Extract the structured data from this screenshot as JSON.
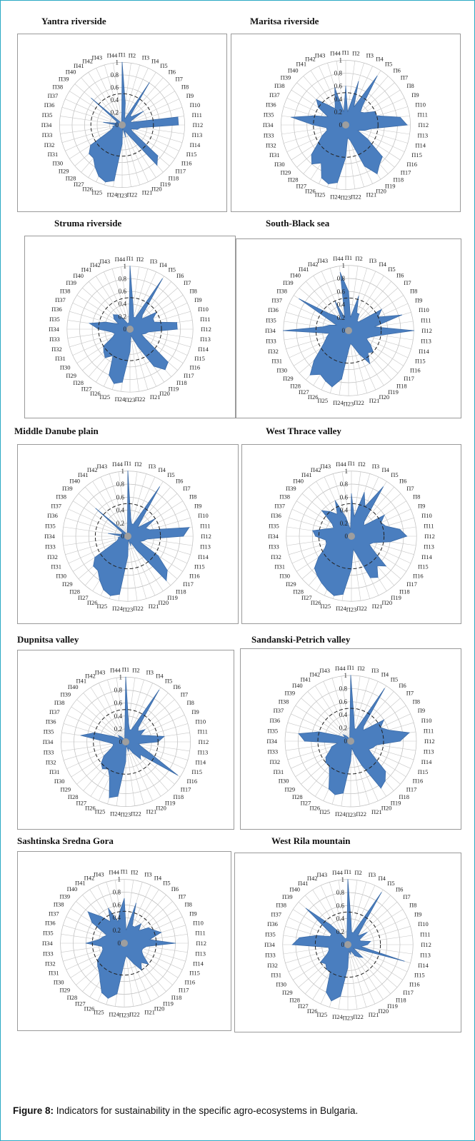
{
  "figure": {
    "caption_label": "Figure 8:",
    "caption_text": "Indicators for sustainability in the specific agro-ecosystems in Bulgaria."
  },
  "chart_data": [
    {
      "type": "radar",
      "title": "Yantra riverside",
      "axes_ticks": [
        "0",
        "0.2",
        "0.4",
        "0.6",
        "0.8",
        "1"
      ],
      "reference_circle": 0.5,
      "color": "#4a7ebf",
      "categories": [
        "П1",
        "П2",
        "П3",
        "П4",
        "П5",
        "П6",
        "П7",
        "П8",
        "П9",
        "П10",
        "П11",
        "П12",
        "П13",
        "П14",
        "П15",
        "П16",
        "П17",
        "П18",
        "П19",
        "П20",
        "П21",
        "П22",
        "П23",
        "П24",
        "П25",
        "П26",
        "П27",
        "П28",
        "П29",
        "П30",
        "П31",
        "П32",
        "П33",
        "П34",
        "П35",
        "П36",
        "П37",
        "П38",
        "П39",
        "П40",
        "П41",
        "П42",
        "П43",
        "П44"
      ],
      "values": [
        1.0,
        0.35,
        0.15,
        0.1,
        0.8,
        0.2,
        0.2,
        0.4,
        0.15,
        0.15,
        0.9,
        0.9,
        0.3,
        0.25,
        0.15,
        0.2,
        0.75,
        0.85,
        0.2,
        0.1,
        0.2,
        0.05,
        0.3,
        0.9,
        0.95,
        0.9,
        0.8,
        0.7,
        0.7,
        0.6,
        0.2,
        0.15,
        0.15,
        0.1,
        0.3,
        0.1,
        0.1,
        0.1,
        0.65,
        0.1,
        0.05,
        0.05,
        0.05,
        0.05
      ]
    },
    {
      "type": "radar",
      "title": "Maritsa riverside",
      "axes_ticks": [
        "0",
        "0.2",
        "0.4",
        "0.6",
        "0.8",
        "1"
      ],
      "reference_circle": 0.5,
      "color": "#4a7ebf",
      "categories": [
        "П1",
        "П2",
        "П3",
        "П4",
        "П5",
        "П6",
        "П7",
        "П8",
        "П9",
        "П10",
        "П11",
        "П12",
        "П13",
        "П14",
        "П15",
        "П16",
        "П17",
        "П18",
        "П19",
        "П20",
        "П21",
        "П22",
        "П23",
        "П24",
        "П25",
        "П26",
        "П27",
        "П28",
        "П29",
        "П30",
        "П31",
        "П32",
        "П33",
        "П34",
        "П35",
        "П36",
        "П37",
        "П38",
        "П39",
        "П40",
        "П41",
        "П42",
        "П43",
        "П44"
      ],
      "values": [
        0.6,
        0.2,
        0.7,
        0.3,
        0.9,
        0.4,
        0.3,
        0.35,
        0.5,
        0.5,
        0.85,
        0.95,
        0.4,
        0.3,
        0.2,
        0.4,
        0.75,
        0.8,
        0.9,
        0.7,
        0.25,
        0.2,
        0.5,
        0.9,
        0.95,
        0.9,
        0.7,
        0.8,
        0.7,
        0.5,
        0.4,
        0.3,
        0.3,
        0.5,
        0.85,
        0.5,
        0.3,
        0.5,
        0.6,
        0.4,
        0.3,
        0.4,
        0.6,
        0.2
      ]
    },
    {
      "type": "radar",
      "title": "Struma riverside",
      "axes_ticks": [
        "0",
        "0.2",
        "0.4",
        "0.6",
        "0.8",
        "1"
      ],
      "reference_circle": 0.5,
      "color": "#4a7ebf",
      "categories": [
        "П1",
        "П2",
        "П3",
        "П4",
        "П5",
        "П6",
        "П7",
        "П8",
        "П9",
        "П10",
        "П11",
        "П12",
        "П13",
        "П14",
        "П15",
        "П16",
        "П17",
        "П18",
        "П19",
        "П20",
        "П21",
        "П22",
        "П23",
        "П24",
        "П25",
        "П26",
        "П27",
        "П28",
        "П29",
        "П30",
        "П31",
        "П32",
        "П33",
        "П34",
        "П35",
        "П36",
        "П37",
        "П38",
        "П39",
        "П40",
        "П41",
        "П42",
        "П43",
        "П44"
      ],
      "values": [
        1.0,
        0.35,
        0.2,
        0.2,
        0.95,
        0.3,
        0.25,
        0.5,
        0.4,
        0.4,
        0.75,
        0.75,
        0.3,
        0.25,
        0.2,
        0.3,
        0.8,
        0.85,
        0.7,
        0.3,
        0.15,
        0.1,
        0.35,
        0.85,
        0.9,
        0.8,
        0.5,
        0.6,
        0.55,
        0.5,
        0.3,
        0.25,
        0.3,
        0.5,
        0.65,
        0.4,
        0.2,
        0.3,
        0.35,
        0.3,
        0.2,
        0.1,
        0.1,
        0.1
      ]
    },
    {
      "type": "radar",
      "title": "South-Black sea",
      "axes_ticks": [
        "0",
        "0.2",
        "0.4",
        "0.6",
        "0.8",
        "1"
      ],
      "reference_circle": 0.5,
      "color": "#4a7ebf",
      "categories": [
        "П1",
        "П2",
        "П3",
        "П4",
        "П5",
        "П6",
        "П7",
        "П8",
        "П9",
        "П10",
        "П11",
        "П12",
        "П13",
        "П14",
        "П15",
        "П16",
        "П17",
        "П18",
        "П19",
        "П20",
        "П21",
        "П22",
        "П23",
        "П24",
        "П25",
        "П26",
        "П27",
        "П28",
        "П29",
        "П30",
        "П31",
        "П32",
        "П33",
        "П34",
        "П35",
        "П36",
        "П37",
        "П38",
        "П39",
        "П40",
        "П41",
        "П42",
        "П43",
        "П44"
      ],
      "values": [
        0.6,
        0.2,
        0.55,
        0.3,
        0.3,
        0.2,
        0.2,
        0.6,
        0.5,
        0.85,
        0.4,
        1.0,
        0.5,
        0.35,
        0.3,
        0.4,
        0.5,
        0.45,
        0.6,
        0.4,
        0.25,
        0.2,
        0.3,
        0.75,
        0.9,
        0.85,
        0.8,
        0.9,
        0.7,
        0.5,
        0.4,
        0.35,
        0.3,
        1.0,
        0.4,
        0.3,
        0.2,
        0.9,
        0.4,
        0.3,
        0.2,
        0.5,
        0.2,
        0.9
      ]
    },
    {
      "type": "radar",
      "title": "Middle Danube plain",
      "axes_ticks": [
        "0",
        "0.2",
        "0.4",
        "0.6",
        "0.8",
        "1"
      ],
      "reference_circle": 0.5,
      "color": "#4a7ebf",
      "categories": [
        "П1",
        "П2",
        "П3",
        "П4",
        "П5",
        "П6",
        "П7",
        "П8",
        "П9",
        "П10",
        "П11",
        "П12",
        "П13",
        "П14",
        "П15",
        "П16",
        "П17",
        "П18",
        "П19",
        "П20",
        "П21",
        "П22",
        "П23",
        "П24",
        "П25",
        "П26",
        "П27",
        "П28",
        "П29",
        "П30",
        "П31",
        "П32",
        "П33",
        "П34",
        "П35",
        "П36",
        "П37",
        "П38",
        "П39",
        "П40",
        "П41",
        "П42",
        "П43",
        "П44"
      ],
      "values": [
        1.0,
        0.3,
        0.2,
        0.2,
        0.9,
        0.3,
        0.2,
        0.5,
        0.3,
        0.35,
        0.95,
        0.85,
        0.3,
        0.25,
        0.2,
        0.55,
        0.8,
        0.9,
        0.25,
        0.1,
        0.15,
        0.05,
        0.3,
        0.9,
        0.95,
        0.9,
        0.8,
        0.7,
        0.7,
        0.6,
        0.2,
        0.15,
        0.15,
        0.1,
        0.3,
        0.1,
        0.1,
        0.1,
        0.65,
        0.1,
        0.05,
        0.05,
        0.05,
        0.05
      ]
    },
    {
      "type": "radar",
      "title": "West Thrace valley",
      "axes_ticks": [
        "0",
        "0.2",
        "0.4",
        "0.6",
        "0.8",
        "1"
      ],
      "reference_circle": 0.5,
      "color": "#4a7ebf",
      "categories": [
        "П1",
        "П2",
        "П3",
        "П4",
        "П5",
        "П6",
        "П7",
        "П8",
        "П9",
        "П10",
        "П11",
        "П12",
        "П13",
        "П14",
        "П15",
        "П16",
        "П17",
        "П18",
        "П19",
        "П20",
        "П21",
        "П22",
        "П23",
        "П24",
        "П25",
        "П26",
        "П27",
        "П28",
        "П29",
        "П30",
        "П31",
        "П32",
        "П33",
        "П34",
        "П35",
        "П36",
        "П37",
        "П38",
        "П39",
        "П40",
        "П41",
        "П42",
        "П43",
        "П44"
      ],
      "values": [
        0.65,
        0.3,
        0.7,
        0.5,
        0.9,
        0.3,
        0.25,
        0.6,
        0.5,
        0.55,
        0.75,
        0.85,
        0.6,
        0.35,
        0.3,
        0.4,
        0.7,
        0.6,
        0.75,
        0.7,
        0.3,
        0.2,
        0.5,
        0.9,
        0.95,
        0.9,
        0.85,
        0.8,
        0.75,
        0.6,
        0.45,
        0.4,
        0.4,
        0.55,
        0.6,
        0.4,
        0.3,
        0.35,
        0.6,
        0.5,
        0.4,
        0.6,
        0.3,
        0.1
      ]
    },
    {
      "type": "radar",
      "title": "Dupnitsa valley",
      "axes_ticks": [
        "0",
        "0.2",
        "0.4",
        "0.6",
        "0.8",
        "1"
      ],
      "reference_circle": 0.5,
      "color": "#4a7ebf",
      "categories": [
        "П1",
        "П2",
        "П3",
        "П4",
        "П5",
        "П6",
        "П7",
        "П8",
        "П9",
        "П10",
        "П11",
        "П12",
        "П13",
        "П14",
        "П15",
        "П16",
        "П17",
        "П18",
        "П19",
        "П20",
        "П21",
        "П22",
        "П23",
        "П24",
        "П25",
        "П26",
        "П27",
        "П28",
        "П29",
        "П30",
        "П31",
        "П32",
        "П33",
        "П34",
        "П35",
        "П36",
        "П37",
        "П38",
        "П39",
        "П40",
        "П41",
        "П42",
        "П43",
        "П44"
      ],
      "values": [
        1.0,
        0.3,
        0.2,
        0.2,
        0.95,
        0.3,
        0.25,
        0.35,
        0.25,
        0.35,
        0.6,
        0.5,
        0.2,
        0.25,
        0.4,
        0.95,
        0.3,
        0.35,
        0.2,
        0.1,
        0.15,
        0.05,
        0.3,
        0.85,
        0.9,
        0.6,
        0.5,
        0.55,
        0.5,
        0.4,
        0.25,
        0.2,
        0.2,
        0.3,
        0.7,
        0.5,
        0.2,
        0.1,
        0.15,
        0.1,
        0.05,
        0.05,
        0.05,
        0.1
      ]
    },
    {
      "type": "radar",
      "title": "Sandanski-Petrich valley",
      "axes_ticks": [
        "0",
        "0.2",
        "0.4",
        "0.6",
        "0.8",
        "1"
      ],
      "reference_circle": 0.5,
      "color": "#4a7ebf",
      "categories": [
        "П1",
        "П2",
        "П3",
        "П4",
        "П5",
        "П6",
        "П7",
        "П8",
        "П9",
        "П10",
        "П11",
        "П12",
        "П13",
        "П14",
        "П15",
        "П16",
        "П17",
        "П18",
        "П19",
        "П20",
        "П21",
        "П22",
        "П23",
        "П24",
        "П25",
        "П26",
        "П27",
        "П28",
        "П29",
        "П30",
        "П31",
        "П32",
        "П33",
        "П34",
        "П35",
        "П36",
        "П37",
        "П38",
        "П39",
        "П40",
        "П41",
        "П42",
        "П43",
        "П44"
      ],
      "values": [
        1.0,
        0.35,
        0.2,
        0.2,
        0.95,
        0.3,
        0.25,
        0.6,
        0.5,
        0.6,
        0.9,
        0.75,
        0.4,
        0.35,
        0.3,
        0.4,
        0.7,
        0.8,
        0.85,
        0.4,
        0.2,
        0.1,
        0.3,
        0.8,
        0.85,
        0.8,
        0.6,
        0.5,
        0.5,
        0.45,
        0.35,
        0.3,
        0.2,
        0.7,
        0.8,
        0.5,
        0.2,
        0.1,
        0.15,
        0.1,
        0.05,
        0.05,
        0.05,
        0.1
      ]
    },
    {
      "type": "radar",
      "title": "Sashtinska Sredna Gora",
      "axes_ticks": [
        "0",
        "0.2",
        "0.4",
        "0.6",
        "0.8",
        "1"
      ],
      "reference_circle": 0.5,
      "color": "#4a7ebf",
      "categories": [
        "П1",
        "П2",
        "П3",
        "П4",
        "П5",
        "П6",
        "П7",
        "П8",
        "П9",
        "П10",
        "П11",
        "П12",
        "П13",
        "П14",
        "П15",
        "П16",
        "П17",
        "П18",
        "П19",
        "П20",
        "П21",
        "П22",
        "П23",
        "П24",
        "П25",
        "П26",
        "П27",
        "П28",
        "П29",
        "П30",
        "П31",
        "П32",
        "П33",
        "П34",
        "П35",
        "П36",
        "П37",
        "П38",
        "П39",
        "П40",
        "П41",
        "П42",
        "П43",
        "П44"
      ],
      "values": [
        0.7,
        0.2,
        0.65,
        0.3,
        0.3,
        0.4,
        0.3,
        0.45,
        0.5,
        0.6,
        0.4,
        0.8,
        0.35,
        0.3,
        0.3,
        0.35,
        0.5,
        0.4,
        0.5,
        0.35,
        0.25,
        0.2,
        0.3,
        0.8,
        0.9,
        0.85,
        0.7,
        0.6,
        0.55,
        0.5,
        0.4,
        0.35,
        0.35,
        0.6,
        0.4,
        0.35,
        0.3,
        0.6,
        0.75,
        0.55,
        0.4,
        0.6,
        0.35,
        0.5
      ]
    },
    {
      "type": "radar",
      "title": "West Rila mountain",
      "axes_ticks": [
        "0",
        "0.2",
        "0.4",
        "0.6",
        "0.8",
        "1"
      ],
      "reference_circle": 0.5,
      "color": "#4a7ebf",
      "categories": [
        "П1",
        "П2",
        "П3",
        "П4",
        "П5",
        "П6",
        "П7",
        "П8",
        "П9",
        "П10",
        "П11",
        "П12",
        "П13",
        "П14",
        "П15",
        "П16",
        "П17",
        "П18",
        "П19",
        "П20",
        "П21",
        "П22",
        "П23",
        "П24",
        "П25",
        "П26",
        "П27",
        "П28",
        "П29",
        "П30",
        "П31",
        "П32",
        "П33",
        "П34",
        "П35",
        "П36",
        "П37",
        "П38",
        "П39",
        "П40",
        "П41",
        "П42",
        "П43",
        "П44"
      ],
      "values": [
        1.0,
        0.35,
        0.2,
        0.2,
        0.95,
        0.3,
        0.2,
        0.35,
        0.2,
        0.2,
        0.35,
        0.3,
        0.2,
        0.9,
        0.15,
        0.1,
        0.3,
        0.25,
        0.2,
        0.1,
        0.15,
        0.1,
        0.35,
        0.8,
        0.9,
        0.8,
        0.5,
        0.5,
        0.45,
        0.5,
        0.35,
        0.3,
        0.3,
        0.85,
        0.75,
        0.5,
        0.3,
        0.3,
        0.85,
        0.4,
        0.2,
        0.1,
        0.1,
        0.1
      ]
    }
  ]
}
